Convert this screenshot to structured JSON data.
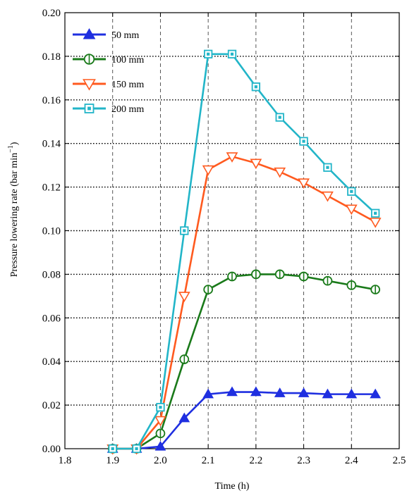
{
  "chart_data": {
    "type": "line",
    "xlabel": "Time (h)",
    "ylabel": "Pressure lowering rate (bar min",
    "ylabel_superscript": "−1",
    "ylabel_close": ")",
    "xlim": [
      1.8,
      2.5
    ],
    "ylim": [
      0.0,
      0.2
    ],
    "x_ticks": [
      "1.8",
      "1.9",
      "2.0",
      "2.1",
      "2.2",
      "2.3",
      "2.4",
      "2.5"
    ],
    "y_ticks": [
      "0.00",
      "0.02",
      "0.04",
      "0.06",
      "0.08",
      "0.10",
      "0.12",
      "0.14",
      "0.16",
      "0.18",
      "0.20"
    ],
    "grid": true,
    "legend_position": "top-left",
    "x": [
      1.9,
      1.95,
      2.0,
      2.05,
      2.1,
      2.15,
      2.2,
      2.25,
      2.3,
      2.35,
      2.4,
      2.45
    ],
    "series": [
      {
        "name": "50 mm",
        "color": "#1f2fe0",
        "marker": "triangle-up",
        "values": [
          0.0,
          0.0,
          0.001,
          0.014,
          0.025,
          0.026,
          0.026,
          0.0255,
          0.0255,
          0.025,
          0.025,
          0.025
        ]
      },
      {
        "name": "100 mm",
        "color": "#1a7a1a",
        "marker": "circle",
        "values": [
          0.0,
          0.0,
          0.007,
          0.041,
          0.073,
          0.079,
          0.08,
          0.08,
          0.079,
          0.077,
          0.075,
          0.073
        ]
      },
      {
        "name": "150 mm",
        "color": "#ff5a1f",
        "marker": "triangle-down",
        "values": [
          0.0,
          0.0,
          0.013,
          0.07,
          0.128,
          0.134,
          0.131,
          0.127,
          0.122,
          0.116,
          0.11,
          0.104
        ]
      },
      {
        "name": "200 mm",
        "color": "#22b5c8",
        "marker": "square",
        "values": [
          0.0,
          0.0,
          0.019,
          0.1,
          0.181,
          0.181,
          0.166,
          0.152,
          0.141,
          0.129,
          0.118,
          0.108
        ]
      }
    ]
  }
}
